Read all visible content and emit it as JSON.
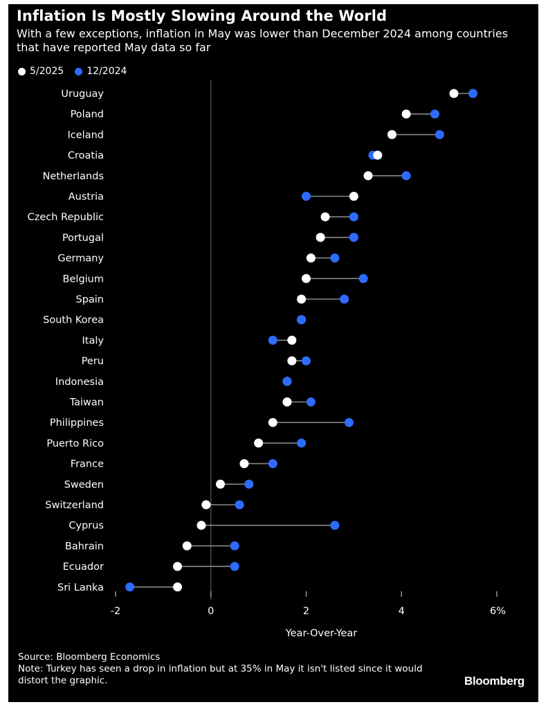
{
  "header": {
    "title": "Inflation Is Mostly Slowing Around the World",
    "subtitle": "With a few exceptions, inflation in May was lower than December 2024 among countries that have reported May data so far"
  },
  "legend": {
    "items": [
      {
        "label": "5/2025",
        "color": "#ffffff"
      },
      {
        "label": "12/2024",
        "color": "#2e6bff"
      }
    ]
  },
  "footer": {
    "source": "Source: Bloomberg Economics",
    "note": "Note: Turkey has seen a drop in inflation but at 35% in May it isn't listed since it would distort the graphic.",
    "logo": "Bloomberg"
  },
  "chart_data": {
    "type": "dot-plot",
    "xlabel": "Year-Over-Year",
    "xlim": [
      -2,
      6
    ],
    "xticks": [
      {
        "value": -2,
        "label": "-2"
      },
      {
        "value": 0,
        "label": "0"
      },
      {
        "value": 2,
        "label": "2"
      },
      {
        "value": 4,
        "label": "4"
      },
      {
        "value": 6,
        "label": "6%"
      }
    ],
    "zero_line": true,
    "series": [
      {
        "name": "5/2025",
        "color": "#ffffff"
      },
      {
        "name": "12/2024",
        "color": "#2e6bff"
      }
    ],
    "categories": [
      "Uruguay",
      "Poland",
      "Iceland",
      "Croatia",
      "Netherlands",
      "Austria",
      "Czech Republic",
      "Portugal",
      "Germany",
      "Belgium",
      "Spain",
      "South Korea",
      "Italy",
      "Peru",
      "Indonesia",
      "Taiwan",
      "Philippines",
      "Puerto Rico",
      "France",
      "Sweden",
      "Switzerland",
      "Cyprus",
      "Bahrain",
      "Ecuador",
      "Sri Lanka"
    ],
    "values_may_2025": [
      5.1,
      4.1,
      3.8,
      3.5,
      3.3,
      3.0,
      2.4,
      2.3,
      2.1,
      2.0,
      1.9,
      1.9,
      1.7,
      1.7,
      1.6,
      1.6,
      1.3,
      1.0,
      0.7,
      0.2,
      -0.1,
      -0.2,
      -0.5,
      -0.7,
      -0.7
    ],
    "values_dec_2024": [
      5.5,
      4.7,
      4.8,
      3.4,
      4.1,
      2.0,
      3.0,
      3.0,
      2.6,
      3.2,
      2.8,
      1.9,
      1.3,
      2.0,
      1.6,
      2.1,
      2.9,
      1.9,
      1.3,
      0.8,
      0.6,
      2.6,
      0.5,
      0.5,
      -1.7
    ]
  }
}
